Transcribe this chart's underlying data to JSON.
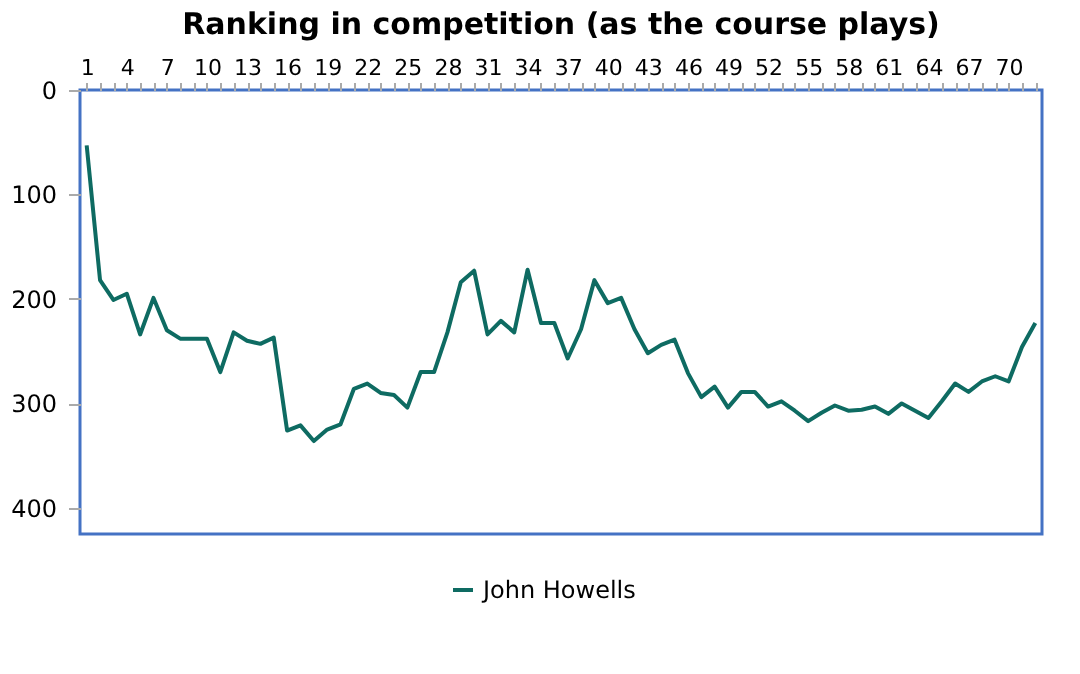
{
  "chart_data": {
    "type": "line",
    "title": "Ranking in competition (as the course plays)",
    "categories": [
      "1",
      null,
      null,
      "4",
      null,
      null,
      "7",
      null,
      null,
      "10",
      null,
      null,
      "13",
      null,
      null,
      "16",
      null,
      null,
      "19",
      null,
      null,
      "22",
      null,
      null,
      "25",
      null,
      null,
      "28",
      null,
      null,
      "31",
      null,
      null,
      "34",
      null,
      null,
      "37",
      null,
      null,
      "40",
      null,
      null,
      "43",
      null,
      null,
      "46",
      null,
      null,
      "49",
      null,
      null,
      "52",
      null,
      null,
      "55",
      null,
      null,
      "58",
      null,
      null,
      "61",
      null,
      null,
      "64",
      null,
      null,
      "67",
      null,
      null,
      "70",
      null,
      null
    ],
    "series": [
      {
        "name": "John Howells",
        "color": "#0e6b62",
        "values": [
          53,
          182,
          201,
          195,
          234,
          199,
          230,
          238,
          238,
          238,
          270,
          232,
          240,
          243,
          237,
          326,
          321,
          336,
          325,
          320,
          286,
          281,
          290,
          292,
          304,
          270,
          270,
          232,
          184,
          173,
          234,
          221,
          232,
          172,
          223,
          223,
          257,
          229,
          182,
          204,
          199,
          229,
          252,
          244,
          239,
          271,
          294,
          284,
          304,
          289,
          289,
          303,
          298,
          307,
          317,
          309,
          302,
          307,
          306,
          303,
          310,
          300,
          307,
          314,
          298,
          281,
          289,
          279,
          274,
          279,
          246,
          223
        ]
      }
    ],
    "ylim": [
      425,
      0
    ],
    "yticks": [
      0,
      100,
      200,
      300,
      400
    ],
    "grid": false,
    "legend": "bottom",
    "marker": "none",
    "line_style": "solid"
  }
}
